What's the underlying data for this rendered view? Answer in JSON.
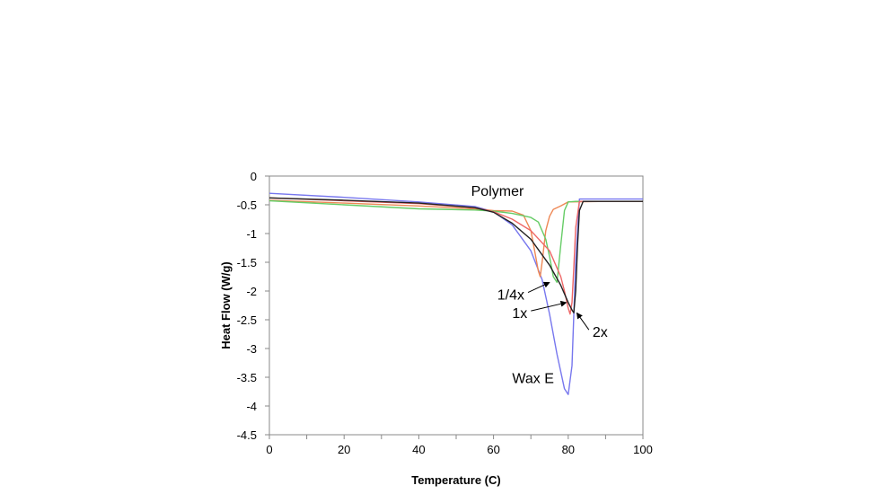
{
  "chart_data": {
    "type": "line",
    "title": "",
    "xlabel": "Temperature (C)",
    "ylabel": "Heat Flow (W/g)",
    "xlim": [
      0,
      100
    ],
    "ylim": [
      -4.5,
      0
    ],
    "xticks": [
      0,
      20,
      40,
      60,
      80,
      100
    ],
    "yticks": [
      0,
      -0.5,
      -1,
      -1.5,
      -2,
      -2.5,
      -3,
      -3.5,
      -4,
      -4.5
    ],
    "ytick_labels": [
      "0",
      "-0.5",
      "-1",
      "-1.5",
      "-2",
      "-2.5",
      "-3",
      "-3.5",
      "-4",
      "-4.5"
    ],
    "grid": false,
    "series": [
      {
        "color": "#7777ee",
        "x": [
          0,
          20,
          40,
          55,
          60,
          65,
          70,
          73,
          75,
          77,
          79,
          80,
          81,
          82,
          83,
          90,
          100
        ],
        "y": [
          -0.3,
          -0.37,
          -0.45,
          -0.53,
          -0.62,
          -0.85,
          -1.3,
          -1.8,
          -2.4,
          -3.1,
          -3.7,
          -3.8,
          -3.3,
          -1.5,
          -0.4,
          -0.4,
          -0.4
        ]
      },
      {
        "color": "#ee8855",
        "x": [
          0,
          20,
          40,
          55,
          60,
          65,
          68,
          70,
          71,
          72,
          72.5,
          73,
          74,
          75,
          76,
          78,
          80,
          90,
          100
        ],
        "y": [
          -0.42,
          -0.47,
          -0.52,
          -0.57,
          -0.6,
          -0.61,
          -0.68,
          -0.95,
          -1.3,
          -1.65,
          -1.75,
          -1.5,
          -0.95,
          -0.7,
          -0.58,
          -0.52,
          -0.45,
          -0.44,
          -0.44
        ]
      },
      {
        "color": "#66cc66",
        "x": [
          0,
          20,
          40,
          55,
          60,
          65,
          70,
          72,
          74,
          75,
          76,
          77,
          78,
          79,
          80,
          82,
          90,
          100
        ],
        "y": [
          -0.43,
          -0.5,
          -0.57,
          -0.59,
          -0.61,
          -0.65,
          -0.72,
          -0.8,
          -1.1,
          -1.4,
          -1.75,
          -1.85,
          -1.2,
          -0.6,
          -0.45,
          -0.44,
          -0.44,
          -0.44
        ]
      },
      {
        "color": "#ee6666",
        "x": [
          0,
          20,
          40,
          55,
          60,
          65,
          70,
          75,
          78,
          79,
          80,
          80.5,
          81,
          81.5,
          82,
          83,
          90,
          100
        ],
        "y": [
          -0.38,
          -0.43,
          -0.48,
          -0.55,
          -0.62,
          -0.75,
          -0.95,
          -1.3,
          -1.75,
          -2.0,
          -2.3,
          -2.4,
          -2.2,
          -1.6,
          -0.9,
          -0.44,
          -0.44,
          -0.44
        ]
      },
      {
        "color": "#222222",
        "x": [
          0,
          20,
          40,
          55,
          60,
          65,
          70,
          75,
          78,
          80,
          81,
          81.5,
          82,
          82.5,
          83,
          84,
          90,
          100
        ],
        "y": [
          -0.38,
          -0.42,
          -0.47,
          -0.55,
          -0.63,
          -0.82,
          -1.1,
          -1.55,
          -1.9,
          -2.2,
          -2.33,
          -2.38,
          -2.0,
          -1.2,
          -0.6,
          -0.44,
          -0.44,
          -0.44
        ]
      }
    ],
    "annotations": [
      {
        "text": "Polymer",
        "x": 54,
        "y": -0.34,
        "anchor": "start"
      },
      {
        "text": "1/4x",
        "x": 61,
        "y": -2.15,
        "anchor": "start",
        "arrow_to": [
          75,
          -1.85
        ]
      },
      {
        "text": "1x",
        "x": 65,
        "y": -2.47,
        "anchor": "start",
        "arrow_to": [
          79.5,
          -2.2
        ]
      },
      {
        "text": "2x",
        "x": 86.5,
        "y": -2.8,
        "anchor": "start",
        "arrow_to": [
          82.3,
          -2.38
        ]
      },
      {
        "text": "Wax E",
        "x": 65,
        "y": -3.6,
        "anchor": "start"
      }
    ]
  }
}
